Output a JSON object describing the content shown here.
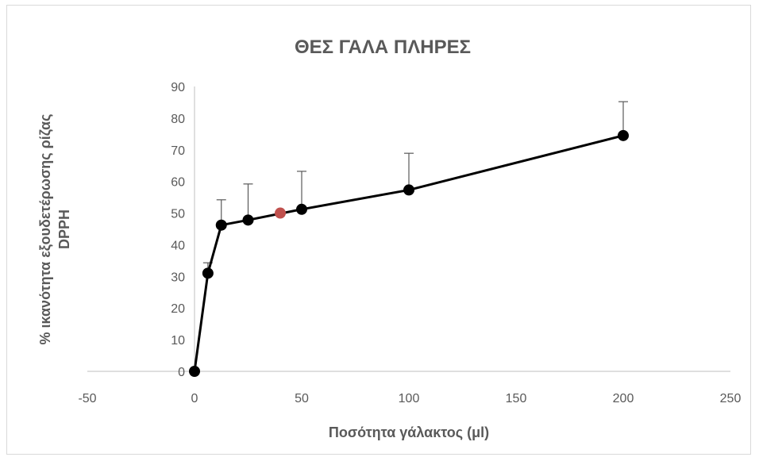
{
  "chart_data": {
    "type": "scatter",
    "title": "ΘΕΣ ΓΑΛΑ ΠΛΗΡΕΣ",
    "xlabel": "Ποσότητα γάλακτος (μl)",
    "ylabel_lines": [
      "% ικανότητα εξουδετέρωσης ρίζας",
      "DPPH"
    ],
    "xlim": [
      -50,
      250
    ],
    "ylim": [
      0,
      90
    ],
    "xticks": [
      -50,
      0,
      50,
      100,
      150,
      200,
      250
    ],
    "yticks": [
      0,
      10,
      20,
      30,
      40,
      50,
      60,
      70,
      80,
      90
    ],
    "grid": false,
    "series": [
      {
        "color": "#000000",
        "line": true,
        "points": [
          {
            "x": 0,
            "y": 0,
            "err": 0
          },
          {
            "x": 6.25,
            "y": 31,
            "err": 3.3
          },
          {
            "x": 12.5,
            "y": 46.2,
            "err": 8
          },
          {
            "x": 25,
            "y": 47.8,
            "err": 11.4
          },
          {
            "x": 50,
            "y": 51.2,
            "err": 12
          },
          {
            "x": 100,
            "y": 57.3,
            "err": 11.6
          },
          {
            "x": 200,
            "y": 74.5,
            "err": 10.7
          }
        ]
      },
      {
        "color": "#c0504d",
        "line": false,
        "points": [
          {
            "x": 40,
            "y": 50
          }
        ]
      }
    ]
  }
}
